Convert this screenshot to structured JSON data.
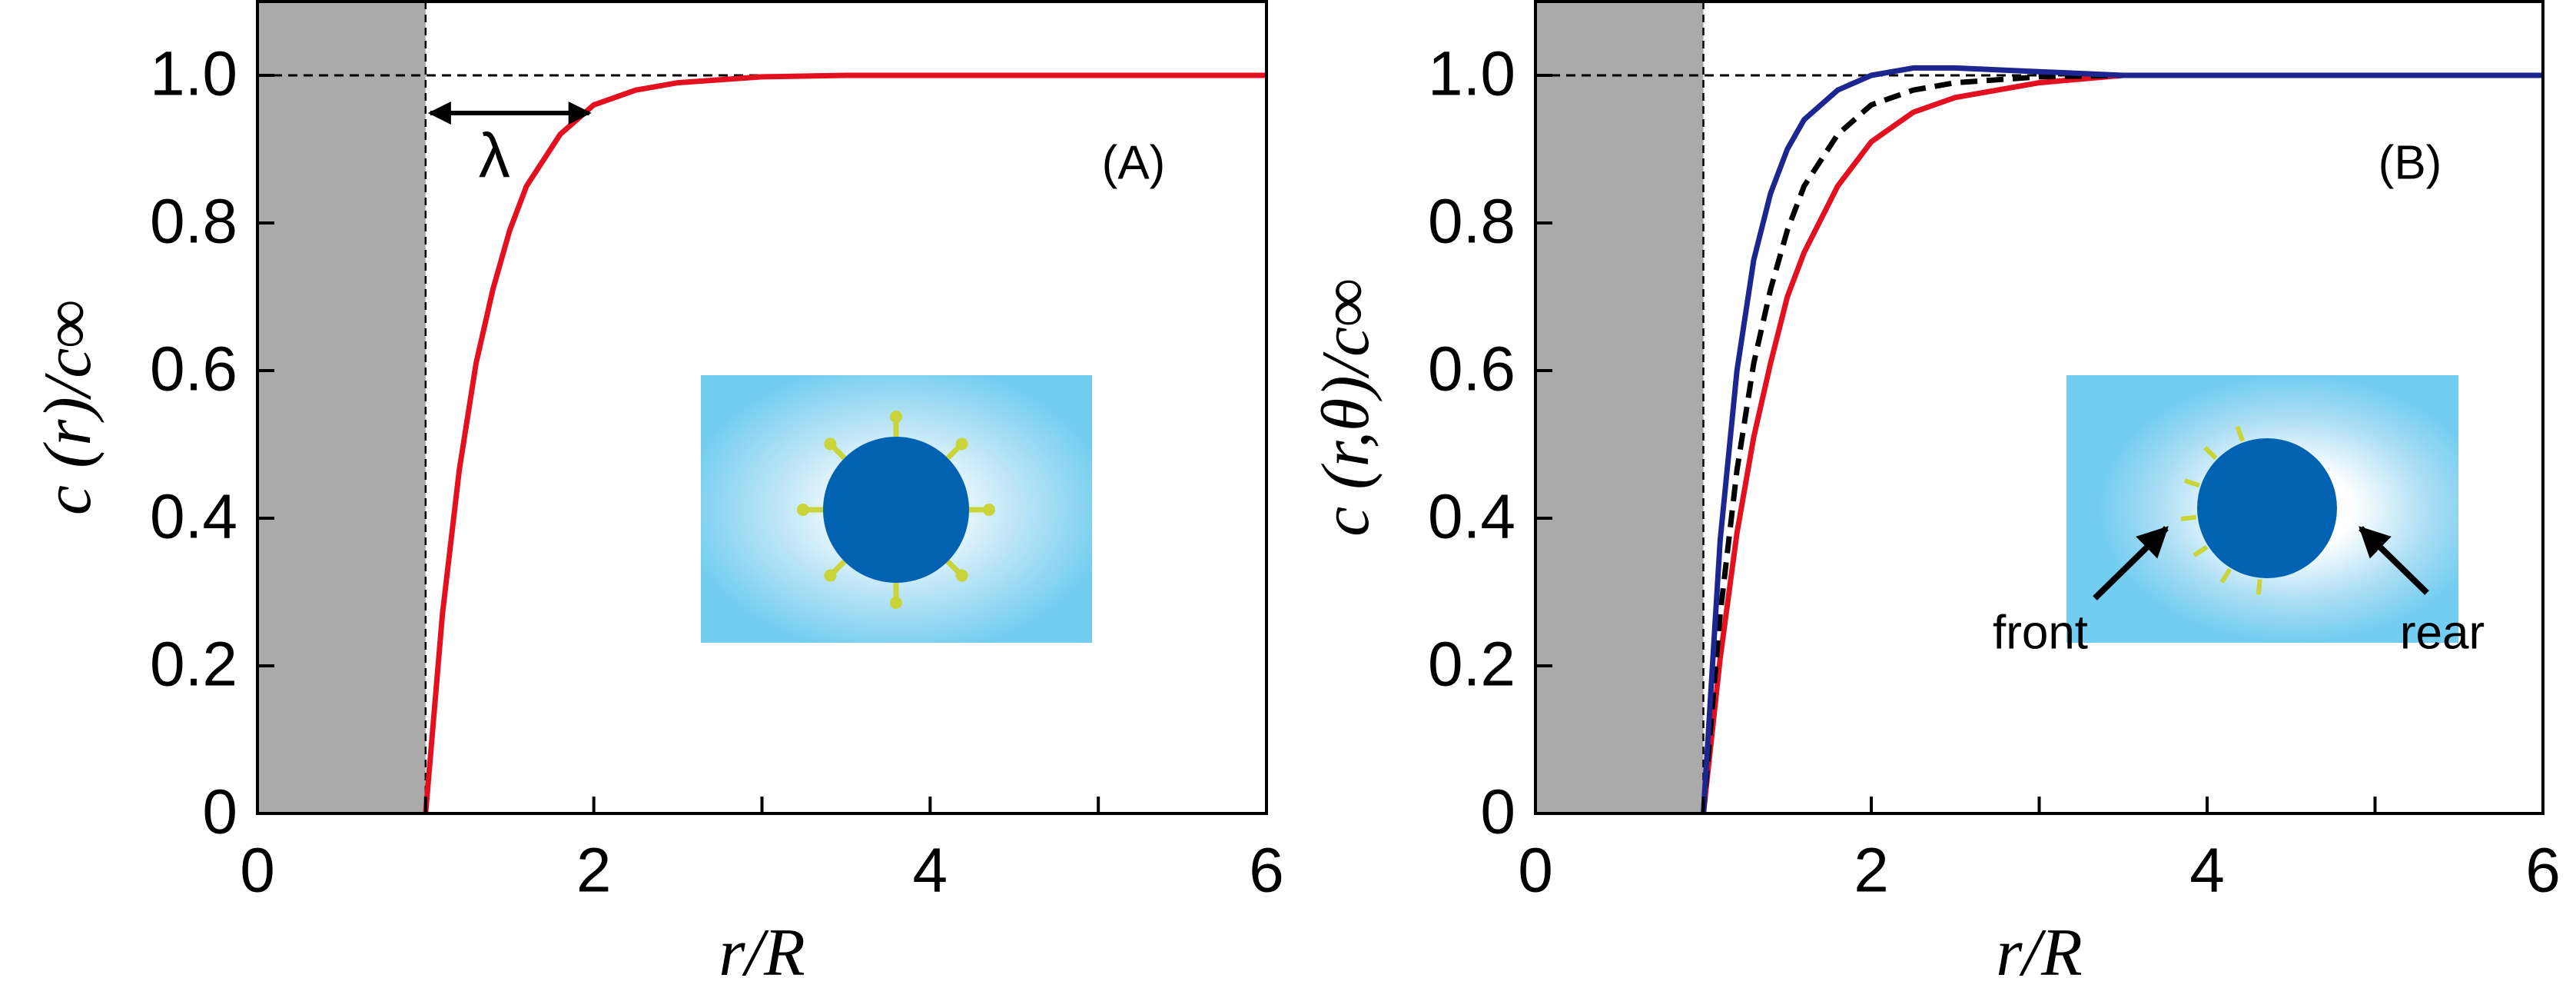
{
  "chart_data": [
    {
      "type": "line",
      "panel_label": "(A)",
      "ylabel": "c (r)/c∞",
      "xlabel": "r/R",
      "xlim": [
        0,
        6
      ],
      "ylim": [
        0,
        1.1
      ],
      "xticks": [
        0,
        2,
        4,
        6
      ],
      "minor_xticks": [
        1,
        3,
        5
      ],
      "yticks": [
        0,
        0.2,
        0.4,
        0.6,
        0.8,
        {
          "value": 1,
          "label": "1.0"
        }
      ],
      "shaded_x": [
        0,
        1
      ],
      "ref_y": 1,
      "annotations": [
        {
          "text": "λ",
          "x": [
            1,
            2
          ]
        }
      ],
      "x": [
        1,
        1.1,
        1.2,
        1.3,
        1.4,
        1.5,
        1.6,
        1.8,
        2.0,
        2.25,
        2.5,
        3,
        3.5,
        4,
        5,
        6
      ],
      "series": [
        {
          "color": "#e3101f",
          "dashed": false,
          "values": [
            0,
            0.27,
            0.465,
            0.61,
            0.71,
            0.79,
            0.85,
            0.92,
            0.96,
            0.98,
            0.99,
            0.998,
            1.0,
            1.0,
            1.0,
            1.0
          ]
        }
      ]
    },
    {
      "type": "line",
      "panel_label": "(B)",
      "ylabel": "c (r,θ)/c∞",
      "xlabel": "r/R",
      "xlim": [
        0,
        6
      ],
      "ylim": [
        0,
        1.1
      ],
      "xticks": [
        0,
        2,
        4,
        6
      ],
      "minor_xticks": [
        1,
        3,
        5
      ],
      "yticks": [
        0,
        0.2,
        0.4,
        0.6,
        0.8,
        {
          "value": 1,
          "label": "1.0"
        }
      ],
      "shaded_x": [
        0,
        1
      ],
      "ref_y": 1,
      "inset_labels": [
        "front",
        "rear"
      ],
      "x": [
        1,
        1.1,
        1.2,
        1.3,
        1.4,
        1.5,
        1.6,
        1.8,
        2.0,
        2.25,
        2.5,
        3,
        3.5,
        4,
        5,
        6
      ],
      "series": [
        {
          "color": "#e3101f",
          "dashed": false,
          "values": [
            0,
            0.21,
            0.38,
            0.51,
            0.61,
            0.7,
            0.76,
            0.85,
            0.91,
            0.95,
            0.97,
            0.99,
            1.0,
            1.0,
            1.0,
            1.0
          ]
        },
        {
          "color": "#000000",
          "dashed": true,
          "values": [
            0,
            0.27,
            0.465,
            0.61,
            0.71,
            0.79,
            0.85,
            0.92,
            0.96,
            0.98,
            0.99,
            0.998,
            1.0,
            1.0,
            1.0,
            1.0
          ]
        },
        {
          "color": "#1c2590",
          "dashed": false,
          "values": [
            0,
            0.37,
            0.6,
            0.75,
            0.84,
            0.9,
            0.94,
            0.98,
            1.0,
            1.01,
            1.01,
            1.005,
            1.0,
            1.0,
            1.0,
            1.0
          ]
        }
      ]
    }
  ]
}
